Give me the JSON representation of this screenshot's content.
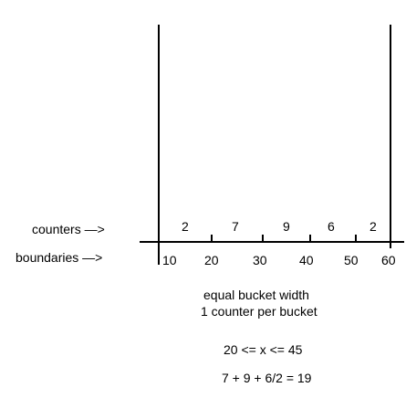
{
  "labels": {
    "counters": "counters —>",
    "boundaries": "boundaries —>"
  },
  "counters": [
    "2",
    "7",
    "9",
    "6",
    "2"
  ],
  "boundaries": [
    "10",
    "20",
    "30",
    "40",
    "50",
    "60"
  ],
  "caption": {
    "line1": "equal bucket width",
    "line2": "1 counter per bucket"
  },
  "query": "20 <= x <= 45",
  "result": "7 + 9 + 6/2 = 19"
}
